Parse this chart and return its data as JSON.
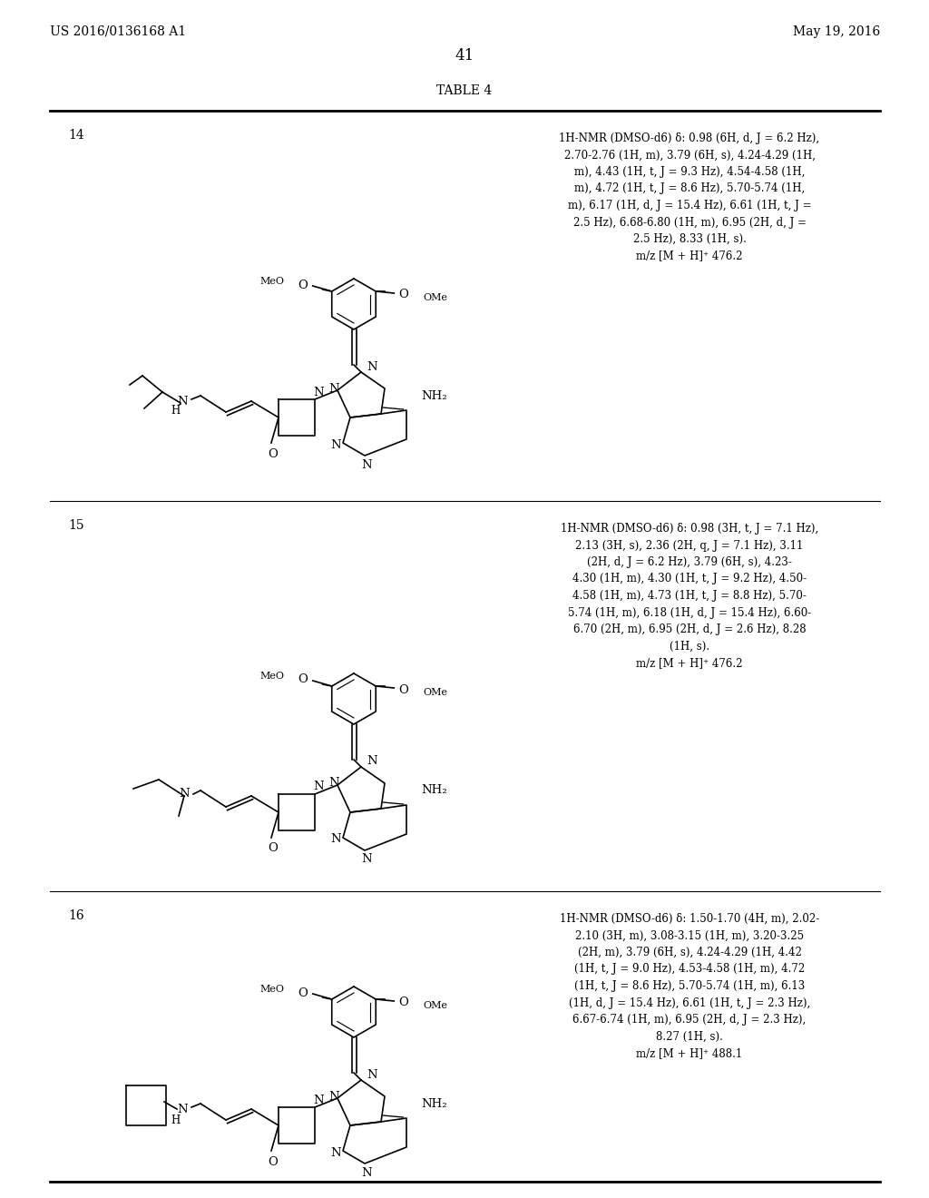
{
  "background_color": "#ffffff",
  "page_number": "41",
  "header_left": "US 2016/0136168 A1",
  "header_right": "May 19, 2016",
  "table_title": "TABLE 4",
  "rows": [
    {
      "compound_num": "14",
      "nmr_text": "1H-NMR (DMSO-d6) δ: 0.98 (6H, d, J = 6.2 Hz),\n2.70-2.76 (1H, m), 3.79 (6H, s), 4.24-4.29 (1H,\nm), 4.43 (1H, t, J = 9.3 Hz), 4.54-4.58 (1H,\nm), 4.72 (1H, t, J = 8.6 Hz), 5.70-5.74 (1H,\nm), 6.17 (1H, d, J = 15.4 Hz), 6.61 (1H, t, J =\n2.5 Hz), 6.68-6.80 (1H, m), 6.95 (2H, d, J =\n2.5 Hz), 8.33 (1H, s).\nm/z [M + H]⁺ 476.2"
    },
    {
      "compound_num": "15",
      "nmr_text": "1H-NMR (DMSO-d6) δ: 0.98 (3H, t, J = 7.1 Hz),\n2.13 (3H, s), 2.36 (2H, q, J = 7.1 Hz), 3.11\n(2H, d, J = 6.2 Hz), 3.79 (6H, s), 4.23-\n4.30 (1H, m), 4.30 (1H, t, J = 9.2 Hz), 4.50-\n4.58 (1H, m), 4.73 (1H, t, J = 8.8 Hz), 5.70-\n5.74 (1H, m), 6.18 (1H, d, J = 15.4 Hz), 6.60-\n6.70 (2H, m), 6.95 (2H, d, J = 2.6 Hz), 8.28\n(1H, s).\nm/z [M + H]⁺ 476.2"
    },
    {
      "compound_num": "16",
      "nmr_text": "1H-NMR (DMSO-d6) δ: 1.50-1.70 (4H, m), 2.02-\n2.10 (3H, m), 3.08-3.15 (1H, m), 3.20-3.25\n(2H, m), 3.79 (6H, s), 4.24-4.29 (1H, 4.42\n(1H, t, J = 9.0 Hz), 4.53-4.58 (1H, m), 4.72\n(1H, t, J = 8.6 Hz), 5.70-5.74 (1H, m), 6.13\n(1H, d, J = 15.4 Hz), 6.61 (1H, t, J = 2.3 Hz),\n6.67-6.74 (1H, m), 6.95 (2H, d, J = 2.3 Hz),\n8.27 (1H, s).\nm/z [M + H]⁺ 488.1"
    }
  ]
}
